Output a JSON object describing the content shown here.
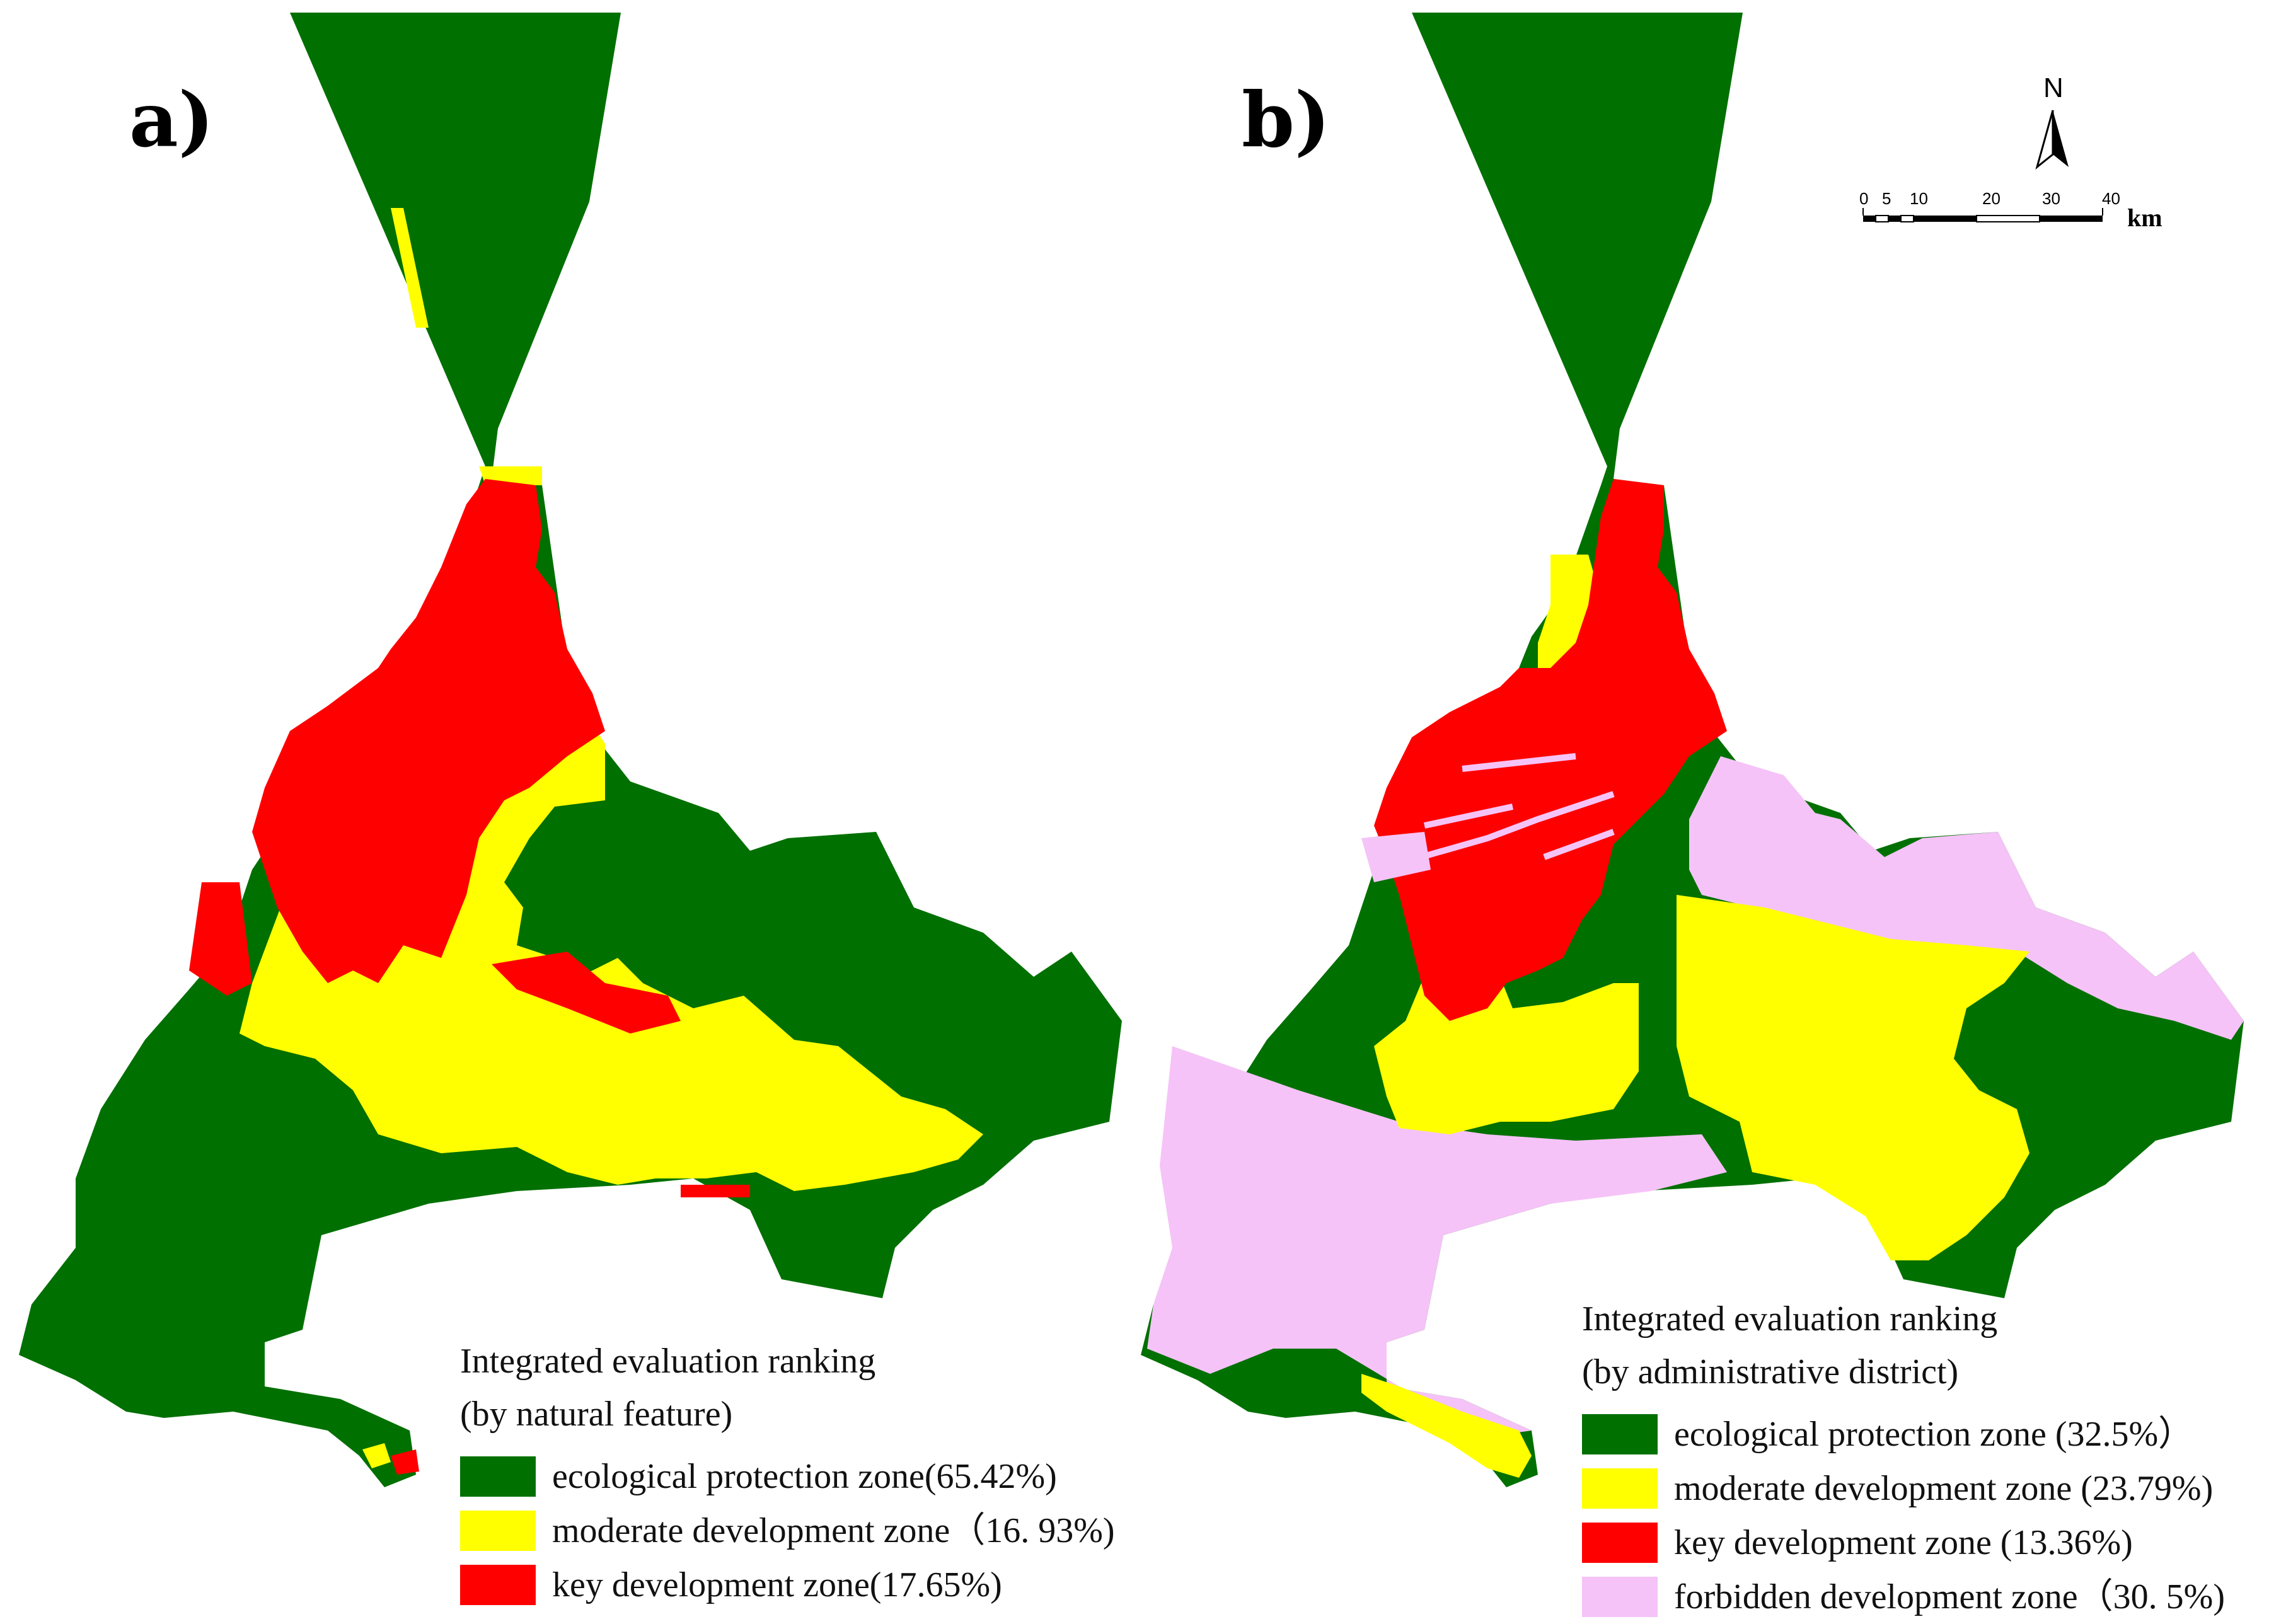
{
  "colors": {
    "ecological": "#007000",
    "moderate": "#ffff00",
    "key": "#ff0000",
    "forbidden": "#f5c3f8"
  },
  "panel_a": {
    "label": "a)",
    "legend": {
      "title_line1": "Integrated evaluation ranking",
      "title_line2": "(by natural feature)",
      "items": [
        {
          "color": "#007000",
          "text": "ecological protection zone(65.42%)"
        },
        {
          "color": "#ffff00",
          "text": "moderate development zone（16. 93%)"
        },
        {
          "color": "#ff0000",
          "text": "key development zone(17.65%)"
        }
      ]
    }
  },
  "panel_b": {
    "label": "b)",
    "north_label": "N",
    "scale": {
      "ticks": [
        "0",
        "5",
        "10",
        "20",
        "30",
        "40"
      ],
      "unit": "km"
    },
    "legend": {
      "title_line1": "Integrated evaluation ranking",
      "title_line2": "(by administrative district)",
      "items": [
        {
          "color": "#007000",
          "text": "ecological protection zone (32.5%）"
        },
        {
          "color": "#ffff00",
          "text": "moderate development zone (23.79%)"
        },
        {
          "color": "#ff0000",
          "text": "key development zone (13.36%)"
        },
        {
          "color": "#f5c3f8",
          "text": "forbidden development zone（30. 5%)"
        }
      ]
    }
  }
}
